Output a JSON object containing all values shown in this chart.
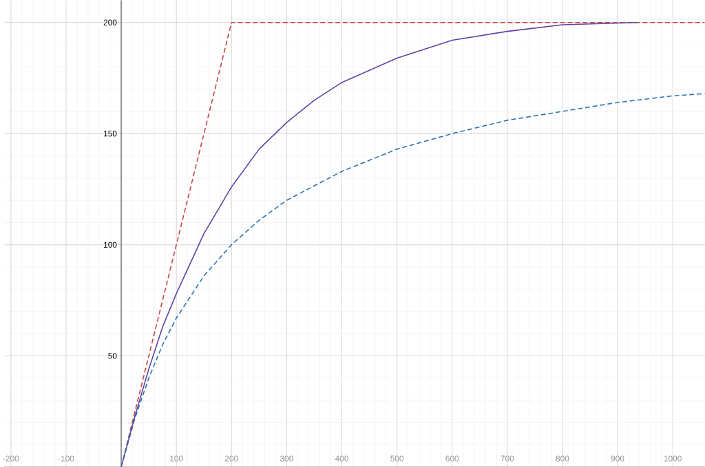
{
  "chart_data": {
    "type": "line",
    "xlim": [
      -212,
      1058
    ],
    "ylim": [
      0,
      210
    ],
    "xticks": [
      -200,
      -100,
      {
        "value": 0,
        "label": null
      },
      100,
      200,
      300,
      400,
      500,
      600,
      700,
      800,
      900,
      1000
    ],
    "yticks": [
      {
        "value": 0,
        "label": null
      },
      50,
      100,
      150,
      200
    ],
    "grid": true,
    "series": [
      {
        "color": "#c74440",
        "line_style": "dashed",
        "x": [
          0,
          200,
          1058
        ],
        "values": [
          0,
          200,
          200
        ]
      },
      {
        "color": "#6042a6",
        "line_style": "solid",
        "x": [
          0,
          25,
          50,
          75,
          100,
          150,
          200,
          250,
          300,
          350,
          400,
          500,
          600,
          700,
          800,
          935
        ],
        "values": [
          0,
          23,
          44,
          63,
          78,
          105,
          126,
          143,
          155,
          165,
          173,
          184,
          192,
          196,
          199,
          200
        ]
      },
      {
        "color": "#2d70b3",
        "line_style": "dashed",
        "x": [
          0,
          25,
          50,
          75,
          100,
          150,
          200,
          250,
          300,
          400,
          500,
          600,
          700,
          800,
          900,
          1000,
          1058
        ],
        "values": [
          0,
          22,
          40,
          55,
          67,
          86,
          100,
          111,
          120,
          133,
          143,
          150,
          156,
          160,
          164,
          167,
          168
        ]
      }
    ]
  }
}
